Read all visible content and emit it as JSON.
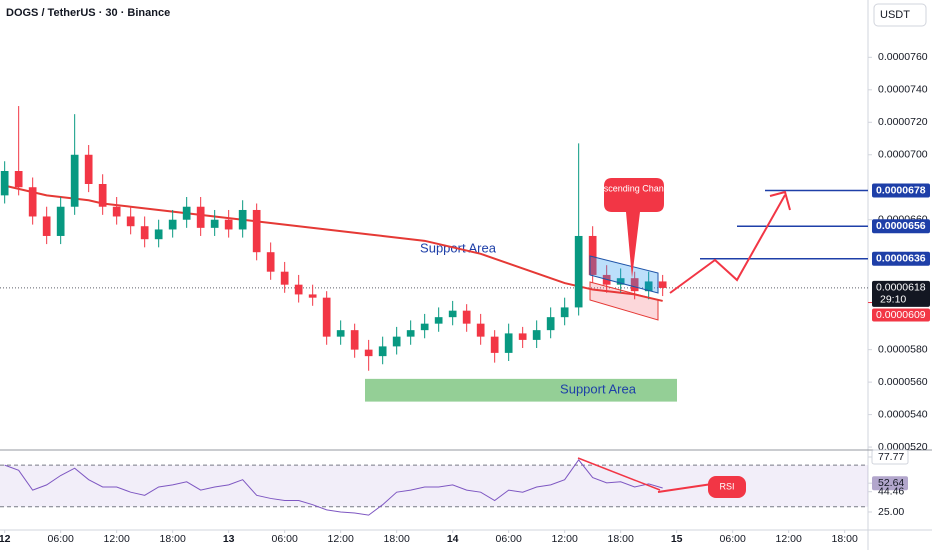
{
  "header": {
    "title": "DOGS / TetherUS · 30 · Binance",
    "currency": "USDT"
  },
  "chart_data": [
    {
      "type": "candlestick",
      "x": [
        0,
        1.5,
        3,
        4.5,
        6,
        7.5,
        9,
        10.5,
        12,
        13.5,
        15,
        16.5,
        18,
        19.5,
        21,
        22.5,
        24,
        25.5,
        27,
        28.5,
        30,
        31.5,
        33,
        34.5,
        36,
        37.5,
        39,
        40.5,
        42,
        43.5,
        45,
        46.5,
        48,
        49.5,
        51,
        52.5,
        54,
        55.5,
        57,
        58.5,
        60,
        61.5,
        63,
        64.5,
        66,
        67.5,
        69,
        70.5
      ],
      "open": [
        6.75e-05,
        6.9e-05,
        6.8e-05,
        6.62e-05,
        6.5e-05,
        6.68e-05,
        7e-05,
        6.82e-05,
        6.68e-05,
        6.62e-05,
        6.56e-05,
        6.48e-05,
        6.54e-05,
        6.6e-05,
        6.68e-05,
        6.55e-05,
        6.6e-05,
        6.54e-05,
        6.66e-05,
        6.4e-05,
        6.28e-05,
        6.2e-05,
        6.14e-05,
        6.12e-05,
        5.88e-05,
        5.92e-05,
        5.8e-05,
        5.76e-05,
        5.82e-05,
        5.88e-05,
        5.92e-05,
        5.96e-05,
        6e-05,
        6.04e-05,
        5.96e-05,
        5.88e-05,
        5.78e-05,
        5.9e-05,
        5.86e-05,
        5.92e-05,
        6e-05,
        6.06e-05,
        6.5e-05,
        6.26e-05,
        6.2e-05,
        6.24e-05,
        6.16e-05,
        6.22e-05
      ],
      "high": [
        6.96e-05,
        7.3e-05,
        6.86e-05,
        6.68e-05,
        6.74e-05,
        7.25e-05,
        7.06e-05,
        6.88e-05,
        6.74e-05,
        6.68e-05,
        6.62e-05,
        6.6e-05,
        6.66e-05,
        6.74e-05,
        6.74e-05,
        6.66e-05,
        6.66e-05,
        6.72e-05,
        6.7e-05,
        6.46e-05,
        6.34e-05,
        6.26e-05,
        6.2e-05,
        6.16e-05,
        5.98e-05,
        5.96e-05,
        5.86e-05,
        5.88e-05,
        5.94e-05,
        5.98e-05,
        6.02e-05,
        6.06e-05,
        6.1e-05,
        6.08e-05,
        6.02e-05,
        5.92e-05,
        5.96e-05,
        5.94e-05,
        5.98e-05,
        6.06e-05,
        6.12e-05,
        7.07e-05,
        6.56e-05,
        6.32e-05,
        6.3e-05,
        6.28e-05,
        6.28e-05,
        6.26e-05
      ],
      "low": [
        6.7e-05,
        6.75e-05,
        6.57e-05,
        6.45e-05,
        6.45e-05,
        6.63e-05,
        6.77e-05,
        6.63e-05,
        6.57e-05,
        6.51e-05,
        6.43e-05,
        6.43e-05,
        6.49e-05,
        6.55e-05,
        6.5e-05,
        6.5e-05,
        6.49e-05,
        6.49e-05,
        6.35e-05,
        6.23e-05,
        6.15e-05,
        6.09e-05,
        6.07e-05,
        5.83e-05,
        5.83e-05,
        5.75e-05,
        5.67e-05,
        5.71e-05,
        5.77e-05,
        5.83e-05,
        5.87e-05,
        5.91e-05,
        5.95e-05,
        5.91e-05,
        5.83e-05,
        5.72e-05,
        5.73e-05,
        5.81e-05,
        5.81e-05,
        5.87e-05,
        5.95e-05,
        6.01e-05,
        6.21e-05,
        6.15e-05,
        6.15e-05,
        6.11e-05,
        6.11e-05,
        6.13e-05
      ],
      "close": [
        6.9e-05,
        6.8e-05,
        6.62e-05,
        6.5e-05,
        6.68e-05,
        7e-05,
        6.82e-05,
        6.68e-05,
        6.62e-05,
        6.56e-05,
        6.48e-05,
        6.54e-05,
        6.6e-05,
        6.68e-05,
        6.55e-05,
        6.6e-05,
        6.54e-05,
        6.66e-05,
        6.4e-05,
        6.28e-05,
        6.2e-05,
        6.14e-05,
        6.12e-05,
        5.88e-05,
        5.92e-05,
        5.8e-05,
        5.76e-05,
        5.82e-05,
        5.88e-05,
        5.92e-05,
        5.96e-05,
        6e-05,
        6.04e-05,
        5.96e-05,
        5.88e-05,
        5.78e-05,
        5.9e-05,
        5.86e-05,
        5.92e-05,
        6e-05,
        6.06e-05,
        6.5e-05,
        6.26e-05,
        6.2e-05,
        6.24e-05,
        6.16e-05,
        6.22e-05,
        6.18e-05
      ],
      "up_color": "#089981",
      "down_color": "#f23645",
      "overlay": {
        "color": "#e53935",
        "values": [
          6.81e-05,
          6.79e-05,
          6.77e-05,
          6.75e-05,
          6.74e-05,
          6.73e-05,
          6.72e-05,
          6.7e-05,
          6.69e-05,
          6.68e-05,
          6.67e-05,
          6.66e-05,
          6.65e-05,
          6.64e-05,
          6.63e-05,
          6.62e-05,
          6.61e-05,
          6.6e-05,
          6.59e-05,
          6.58e-05,
          6.57e-05,
          6.56e-05,
          6.55e-05,
          6.54e-05,
          6.53e-05,
          6.52e-05,
          6.51e-05,
          6.5e-05,
          6.49e-05,
          6.48e-05,
          6.47e-05,
          6.45e-05,
          6.43e-05,
          6.41e-05,
          6.39e-05,
          6.36e-05,
          6.33e-05,
          6.3e-05,
          6.27e-05,
          6.24e-05,
          6.21e-05,
          6.19e-05,
          6.17e-05,
          6.16e-05,
          6.15e-05,
          6.14e-05,
          6.12e-05,
          6.1e-05
        ]
      },
      "xlim": [
        -0.5,
        92.5
      ],
      "xticks": [
        {
          "value": 0,
          "label": "12"
        },
        {
          "value": 6,
          "label": "06:00"
        },
        {
          "value": 12,
          "label": "12:00"
        },
        {
          "value": 18,
          "label": "18:00"
        },
        {
          "value": 24,
          "label": "13"
        },
        {
          "value": 30,
          "label": "06:00"
        },
        {
          "value": 36,
          "label": "12:00"
        },
        {
          "value": 42,
          "label": "18:00"
        },
        {
          "value": 48,
          "label": "14"
        },
        {
          "value": 54,
          "label": "06:00"
        },
        {
          "value": 60,
          "label": "12:00"
        },
        {
          "value": 66,
          "label": "18:00"
        },
        {
          "value": 72,
          "label": "15"
        },
        {
          "value": 78,
          "label": "06:00"
        },
        {
          "value": 84,
          "label": "12:00"
        },
        {
          "value": 90,
          "label": "18:00"
        }
      ],
      "ylim": [
        5.182e-05,
        7.953e-05
      ],
      "yticks": [
        {
          "value": 7.6e-05,
          "label": "0.0000760"
        },
        {
          "value": 7.4e-05,
          "label": "0.0000740"
        },
        {
          "value": 7.2e-05,
          "label": "0.0000720"
        },
        {
          "value": 7e-05,
          "label": "0.0000700"
        },
        {
          "value": 6.6e-05,
          "label": "0.0000660"
        },
        {
          "value": 5.8e-05,
          "label": "0.0000580"
        },
        {
          "value": 5.6e-05,
          "label": "0.0000560"
        },
        {
          "value": 5.4e-05,
          "label": "0.0000540"
        },
        {
          "value": 5.2e-05,
          "label": "0.0000520"
        }
      ],
      "levels": [
        {
          "value": 6.78e-05,
          "label": "0.0000678"
        },
        {
          "value": 6.56e-05,
          "label": "0.0000656"
        },
        {
          "value": 6.36e-05,
          "label": "0.0000636"
        }
      ],
      "last_price": {
        "value": 6.18e-05,
        "label": "0.0000618"
      },
      "countdown": "29:10",
      "overlay_price": {
        "value": 6.09e-05,
        "label": "0.0000609"
      },
      "support_zone": [
        5.48e-05,
        5.62e-05
      ],
      "annotations": [
        "Support Area",
        "Support Area",
        "Descending Channel"
      ]
    },
    {
      "type": "line",
      "x": [
        0,
        1.5,
        3,
        4.5,
        6,
        7.5,
        9,
        10.5,
        12,
        13.5,
        15,
        16.5,
        18,
        19.5,
        21,
        22.5,
        24,
        25.5,
        27,
        28.5,
        30,
        31.5,
        33,
        34.5,
        36,
        37.5,
        39,
        40.5,
        42,
        43.5,
        45,
        46.5,
        48,
        49.5,
        51,
        52.5,
        54,
        55.5,
        57,
        58.5,
        60,
        61.5,
        63,
        64.5,
        66,
        67.5,
        69,
        70.5
      ],
      "series": [
        {
          "color": "#7e57c2",
          "values": [
            70,
            65,
            46,
            51,
            60,
            67,
            56,
            49,
            49,
            44,
            41,
            49,
            51,
            54,
            46,
            49,
            51,
            56,
            41,
            38,
            36,
            36,
            32,
            27,
            25,
            24,
            22,
            32,
            44,
            46,
            49,
            49,
            51,
            46,
            44,
            36,
            46,
            44,
            49,
            51,
            56,
            75,
            58,
            53,
            54,
            49,
            52,
            48
          ]
        }
      ],
      "ylim": [
        7.7,
        84.5
      ],
      "yticks": [
        77.77,
        52.64,
        44.46,
        {
          "value": 25,
          "label": "25.00"
        }
      ],
      "band": [
        30,
        70
      ],
      "annotation": "RSI"
    }
  ]
}
